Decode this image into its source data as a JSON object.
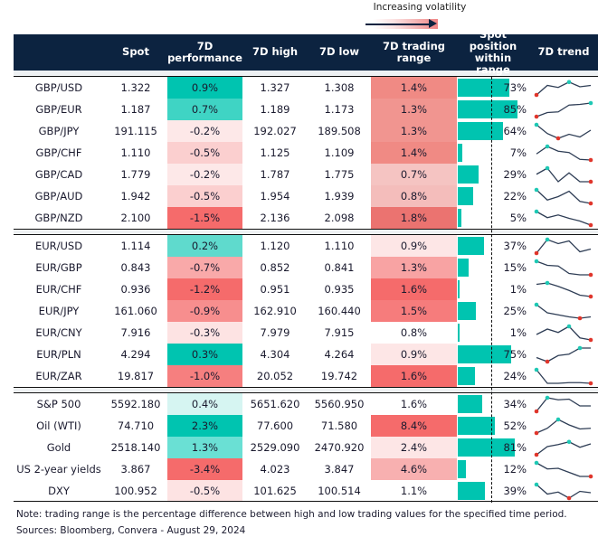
{
  "legend": {
    "label": "Increasing volatility"
  },
  "headers": [
    "",
    "Spot",
    "7D performance",
    "7D high",
    "7D low",
    "7D trading range",
    "Spot position within range",
    "7D trend"
  ],
  "colors": {
    "header": "#0c2340",
    "bar": "#00c4b0",
    "max_marker": "#1ec8b4",
    "min_marker": "#e0352b",
    "line": "#2e3d55"
  },
  "sections": [
    {
      "rows": [
        {
          "name": "GBP/USD",
          "spot": "1.322",
          "perf": "0.9%",
          "perf_color": "#00c4b0",
          "high": "1.327",
          "low": "1.308",
          "range": "1.4%",
          "range_color": "#f08a84",
          "position": "73%",
          "pos_value": 73,
          "trend": [
            0,
            0.7,
            0.55,
            0.95,
            0.6,
            0.7
          ]
        },
        {
          "name": "GBP/EUR",
          "spot": "1.187",
          "perf": "0.7%",
          "perf_color": "#3fd4c4",
          "high": "1.189",
          "low": "1.173",
          "range": "1.3%",
          "range_color": "#f19590",
          "position": "85%",
          "pos_value": 85,
          "trend": [
            0,
            0.3,
            0.35,
            0.85,
            0.9,
            1
          ]
        },
        {
          "name": "GBP/JPY",
          "spot": "191.115",
          "perf": "-0.2%",
          "perf_color": "#fde8e8",
          "high": "192.027",
          "low": "189.508",
          "range": "1.3%",
          "range_color": "#f19590",
          "position": "64%",
          "pos_value": 64,
          "trend": [
            1,
            0.35,
            0,
            0.3,
            0.1,
            0.6
          ]
        },
        {
          "name": "GBP/CHF",
          "spot": "1.110",
          "perf": "-0.5%",
          "perf_color": "#fbcfcf",
          "high": "1.125",
          "low": "1.109",
          "range": "1.4%",
          "range_color": "#f08a84",
          "position": "7%",
          "pos_value": 7,
          "trend": [
            0.45,
            1,
            0.65,
            0.55,
            0.05,
            0
          ]
        },
        {
          "name": "GBP/CAD",
          "spot": "1.779",
          "perf": "-0.2%",
          "perf_color": "#fde8e8",
          "high": "1.787",
          "low": "1.775",
          "range": "0.7%",
          "range_color": "#f5c4c2",
          "position": "29%",
          "pos_value": 29,
          "trend": [
            0.55,
            1,
            0,
            0.65,
            0,
            0
          ]
        },
        {
          "name": "GBP/AUD",
          "spot": "1.942",
          "perf": "-0.5%",
          "perf_color": "#fbcfcf",
          "high": "1.954",
          "low": "1.939",
          "range": "0.8%",
          "range_color": "#f4bdbb",
          "position": "22%",
          "pos_value": 22,
          "trend": [
            1,
            0.25,
            0.5,
            0.9,
            0.15,
            0
          ]
        },
        {
          "name": "GBP/NZD",
          "spot": "2.100",
          "perf": "-1.5%",
          "perf_color": "#f56b6b",
          "high": "2.136",
          "low": "2.098",
          "range": "1.8%",
          "range_color": "#eb7370",
          "position": "5%",
          "pos_value": 5,
          "trend": [
            1,
            0.55,
            0.75,
            0.5,
            0.3,
            0
          ]
        }
      ]
    },
    {
      "rows": [
        {
          "name": "EUR/USD",
          "spot": "1.114",
          "perf": "0.2%",
          "perf_color": "#5fdacd",
          "high": "1.120",
          "low": "1.110",
          "range": "0.9%",
          "range_color": "#fde6e6",
          "position": "37%",
          "pos_value": 37,
          "trend": [
            0,
            1,
            0.7,
            0.9,
            0.1,
            0.3
          ]
        },
        {
          "name": "EUR/GBP",
          "spot": "0.843",
          "perf": "-0.7%",
          "perf_color": "#f9a9a9",
          "high": "0.852",
          "low": "0.841",
          "range": "1.3%",
          "range_color": "#f8a3a3",
          "position": "15%",
          "pos_value": 15,
          "trend": [
            1,
            0.7,
            0.65,
            0.1,
            0,
            0
          ]
        },
        {
          "name": "EUR/CHF",
          "spot": "0.936",
          "perf": "-1.2%",
          "perf_color": "#f56b6b",
          "high": "0.951",
          "low": "0.935",
          "range": "1.6%",
          "range_color": "#f56b6b",
          "position": "1%",
          "pos_value": 1,
          "trend": [
            0.9,
            1,
            0.75,
            0.45,
            0.1,
            0
          ]
        },
        {
          "name": "EUR/JPY",
          "spot": "161.060",
          "perf": "-0.9%",
          "perf_color": "#f78e8e",
          "high": "162.910",
          "low": "160.440",
          "range": "1.5%",
          "range_color": "#f67c7c",
          "position": "25%",
          "pos_value": 25,
          "trend": [
            1,
            0.4,
            0.25,
            0.1,
            0,
            0.1
          ]
        },
        {
          "name": "EUR/CNY",
          "spot": "7.916",
          "perf": "-0.3%",
          "perf_color": "#fde3e3",
          "high": "7.979",
          "low": "7.915",
          "range": "0.8%",
          "range_color": "#ffffff",
          "position": "1%",
          "pos_value": 1,
          "trend": [
            0.4,
            0.8,
            0.55,
            1,
            0.15,
            0
          ]
        },
        {
          "name": "EUR/PLN",
          "spot": "4.294",
          "perf": "0.3%",
          "perf_color": "#00c4b0",
          "high": "4.304",
          "low": "4.264",
          "range": "0.9%",
          "range_color": "#fde6e6",
          "position": "75%",
          "pos_value": 75,
          "trend": [
            0.3,
            0,
            0.45,
            0.55,
            1,
            1
          ]
        },
        {
          "name": "EUR/ZAR",
          "spot": "19.817",
          "perf": "-1.0%",
          "perf_color": "#f67f7f",
          "high": "20.052",
          "low": "19.742",
          "range": "1.6%",
          "range_color": "#f56b6b",
          "position": "24%",
          "pos_value": 24,
          "trend": [
            1,
            0,
            0,
            0.05,
            0.05,
            0
          ]
        }
      ]
    },
    {
      "rows": [
        {
          "name": "S&P 500",
          "spot": "5592.180",
          "perf": "0.4%",
          "perf_color": "#d6f5f2",
          "high": "5651.620",
          "low": "5560.950",
          "range": "1.6%",
          "range_color": "#ffffff",
          "position": "34%",
          "pos_value": 34,
          "trend": [
            0,
            1,
            0.85,
            0.9,
            0.4,
            0.4
          ]
        },
        {
          "name": "Oil (WTI)",
          "spot": "74.710",
          "perf": "2.3%",
          "perf_color": "#00c4b0",
          "high": "77.600",
          "low": "71.580",
          "range": "8.4%",
          "range_color": "#f56b6b",
          "position": "52%",
          "pos_value": 52,
          "trend": [
            0,
            0.35,
            1,
            0.6,
            0.3,
            0.35
          ]
        },
        {
          "name": "Gold",
          "spot": "2518.140",
          "perf": "1.3%",
          "perf_color": "#6ae0d4",
          "high": "2529.090",
          "low": "2470.920",
          "range": "2.4%",
          "range_color": "#fde6e6",
          "position": "81%",
          "pos_value": 81,
          "trend": [
            0,
            0.6,
            0.75,
            0.95,
            0.55,
            0.8
          ]
        },
        {
          "name": "US 2-year yields",
          "spot": "3.867",
          "perf": "-3.4%",
          "perf_color": "#f56b6b",
          "high": "4.023",
          "low": "3.847",
          "range": "4.6%",
          "range_color": "#f8b0b0",
          "position": "12%",
          "pos_value": 12,
          "trend": [
            1,
            0.55,
            0.6,
            0.3,
            0,
            0
          ]
        },
        {
          "name": "DXY",
          "spot": "100.952",
          "perf": "-0.5%",
          "perf_color": "#fde3e3",
          "high": "101.625",
          "low": "100.514",
          "range": "1.1%",
          "range_color": "#ffffff",
          "position": "39%",
          "pos_value": 39,
          "trend": [
            1,
            0.3,
            0.45,
            0,
            0.5,
            0.4
          ]
        }
      ]
    }
  ],
  "note": "Note: trading range is the percentage difference between high and low trading values for the specified time period.",
  "sources": "Sources: Bloomberg, Convera - August 29, 2024"
}
